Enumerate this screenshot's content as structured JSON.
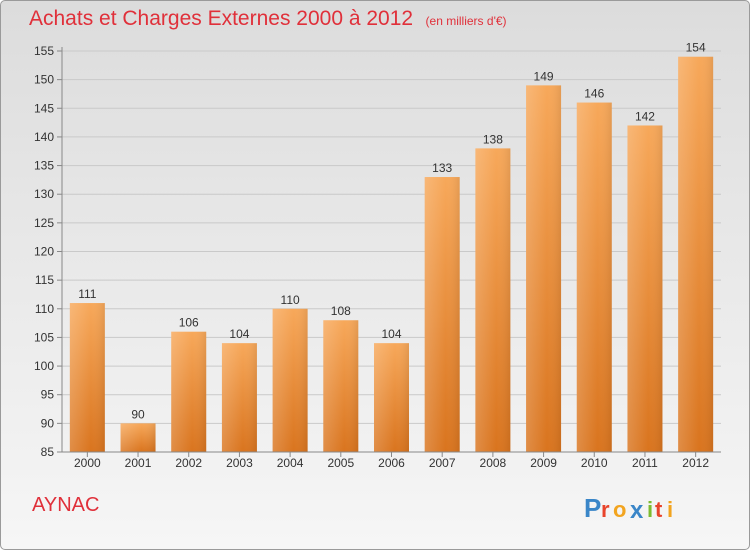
{
  "title": "Achats et Charges Externes 2000 à 2012",
  "unit_label": "(en milliers d'€)",
  "place": "AYNAC",
  "logo": "Proxiti",
  "colors": {
    "title": "#e0303a",
    "bar_top": "#f7a85a",
    "bar_bottom": "#d9741e",
    "grid": "#c9c9c9"
  },
  "chart_data": {
    "type": "bar",
    "title": "Achats et Charges Externes 2000 à 2012",
    "subtitle": "(en milliers d'€)",
    "categories": [
      "2000",
      "2001",
      "2002",
      "2003",
      "2004",
      "2005",
      "2006",
      "2007",
      "2008",
      "2009",
      "2010",
      "2011",
      "2012"
    ],
    "values": [
      111,
      90,
      106,
      104,
      110,
      108,
      104,
      133,
      138,
      149,
      146,
      142,
      154
    ],
    "ylim": [
      85,
      155
    ],
    "yticks": [
      85,
      90,
      95,
      100,
      105,
      110,
      115,
      120,
      125,
      130,
      135,
      140,
      145,
      150,
      155
    ],
    "grid": true,
    "data_labels": true
  }
}
